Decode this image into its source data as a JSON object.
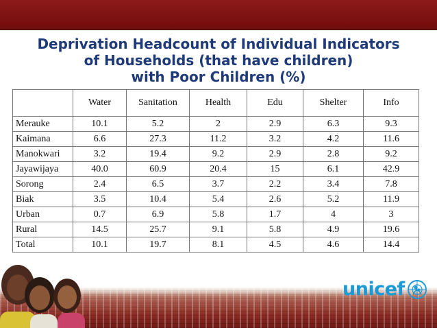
{
  "slide": {
    "title_lines": [
      "Deprivation Headcount of Individual Indicators",
      "of Households (that have children)",
      "with Poor Children (%)"
    ],
    "brand_text": "unicef",
    "colors": {
      "title": "#1f3a78",
      "top_band": "#7a1010",
      "brand": "#1c9ad6"
    }
  },
  "table": {
    "headers": [
      "",
      "Water",
      "Sanitation",
      "Health",
      "Edu",
      "Shelter",
      "Info"
    ],
    "rows": [
      [
        "Merauke",
        "10.1",
        "5.2",
        "2",
        "2.9",
        "6.3",
        "9.3"
      ],
      [
        "Kaimana",
        "6.6",
        "27.3",
        "11.2",
        "3.2",
        "4.2",
        "11.6"
      ],
      [
        "Manokwari",
        "3.2",
        "19.4",
        "9.2",
        "2.9",
        "2.8",
        "9.2"
      ],
      [
        "Jayawijaya",
        "40.0",
        "60.9",
        "20.4",
        "15",
        "6.1",
        "42.9"
      ],
      [
        "Sorong",
        "2.4",
        "6.5",
        "3.7",
        "2.2",
        "3.4",
        "7.8"
      ],
      [
        "Biak",
        "3.5",
        "10.4",
        "5.4",
        "2.6",
        "5.2",
        "11.9"
      ],
      [
        "Urban",
        "0.7",
        "6.9",
        "5.8",
        "1.7",
        "4",
        "3"
      ],
      [
        "Rural",
        "14.5",
        "25.7",
        "9.1",
        "5.8",
        "4.9",
        "19.6"
      ],
      [
        "Total",
        "10.1",
        "19.7",
        "8.1",
        "4.5",
        "4.6",
        "14.4"
      ]
    ]
  }
}
